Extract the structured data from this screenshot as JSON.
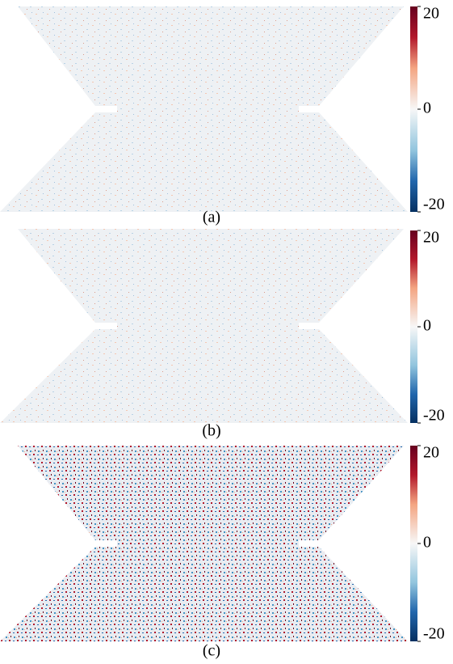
{
  "panels": [
    {
      "label": "(a)",
      "colorbar": {
        "lim": [
          -20,
          20
        ],
        "ticks": [
          20,
          0,
          -20
        ]
      }
    },
    {
      "label": "(b)",
      "colorbar": {
        "lim": [
          -20,
          20
        ],
        "ticks": [
          20,
          0,
          -20
        ]
      }
    },
    {
      "label": "(c)",
      "colorbar": {
        "lim": [
          -20,
          20
        ],
        "ticks": [
          20,
          0,
          -20
        ]
      }
    }
  ]
}
